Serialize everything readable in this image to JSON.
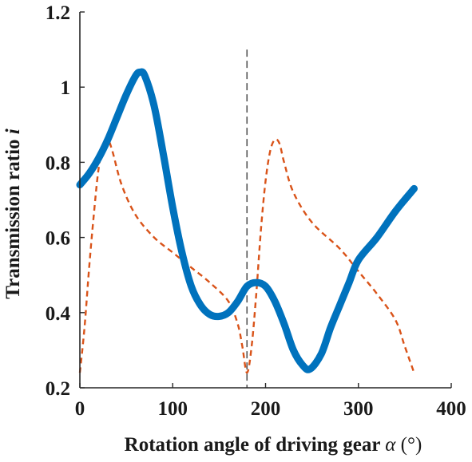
{
  "chart_data": {
    "type": "line",
    "xlabel": "Rotation angle of driving gear",
    "xlabel_symbol": "α",
    "xlabel_unit": "(°)",
    "ylabel": "Transmission ratio",
    "ylabel_symbol": "i",
    "xlim": [
      0,
      400
    ],
    "ylim": [
      0.2,
      1.2
    ],
    "xticks": [
      0,
      100,
      200,
      300,
      400
    ],
    "xtick_labels": [
      "0",
      "100",
      "200",
      "300",
      "400"
    ],
    "yticks": [
      0.2,
      0.4,
      0.6,
      0.8,
      1.0,
      1.2
    ],
    "ytick_labels": [
      "0.2",
      "0.4",
      "0.6",
      "0.8",
      "1",
      "1.2"
    ],
    "grid": false,
    "reference_line": {
      "x": 180,
      "y_range": [
        0.2,
        1.1
      ],
      "style": "dashed",
      "color": "#555555"
    },
    "series": [
      {
        "style": "solid",
        "color": "#0072BD",
        "x": [
          0,
          10,
          20,
          30,
          40,
          50,
          60,
          65,
          70,
          80,
          90,
          100,
          110,
          120,
          130,
          140,
          150,
          160,
          170,
          180,
          190,
          200,
          210,
          220,
          230,
          240,
          248,
          260,
          270,
          280,
          290,
          300,
          320,
          340,
          360
        ],
        "y": [
          0.74,
          0.77,
          0.81,
          0.86,
          0.92,
          0.98,
          1.03,
          1.04,
          1.03,
          0.95,
          0.82,
          0.68,
          0.56,
          0.47,
          0.42,
          0.395,
          0.39,
          0.4,
          0.43,
          0.47,
          0.48,
          0.47,
          0.43,
          0.37,
          0.3,
          0.26,
          0.25,
          0.29,
          0.36,
          0.42,
          0.48,
          0.54,
          0.6,
          0.67,
          0.73
        ]
      },
      {
        "style": "dashed",
        "color": "#D95319",
        "x": [
          0,
          5,
          10,
          15,
          20,
          25,
          30,
          35,
          45,
          60,
          80,
          100,
          120,
          140,
          160,
          170,
          175,
          180,
          185,
          190,
          195,
          200,
          205,
          210,
          215,
          220,
          230,
          250,
          280,
          300,
          320,
          340,
          350,
          360
        ],
        "y": [
          0.24,
          0.36,
          0.52,
          0.66,
          0.78,
          0.84,
          0.86,
          0.83,
          0.74,
          0.66,
          0.6,
          0.56,
          0.52,
          0.48,
          0.43,
          0.37,
          0.31,
          0.24,
          0.31,
          0.45,
          0.62,
          0.75,
          0.83,
          0.86,
          0.85,
          0.8,
          0.72,
          0.64,
          0.57,
          0.51,
          0.45,
          0.38,
          0.31,
          0.24
        ]
      }
    ]
  }
}
